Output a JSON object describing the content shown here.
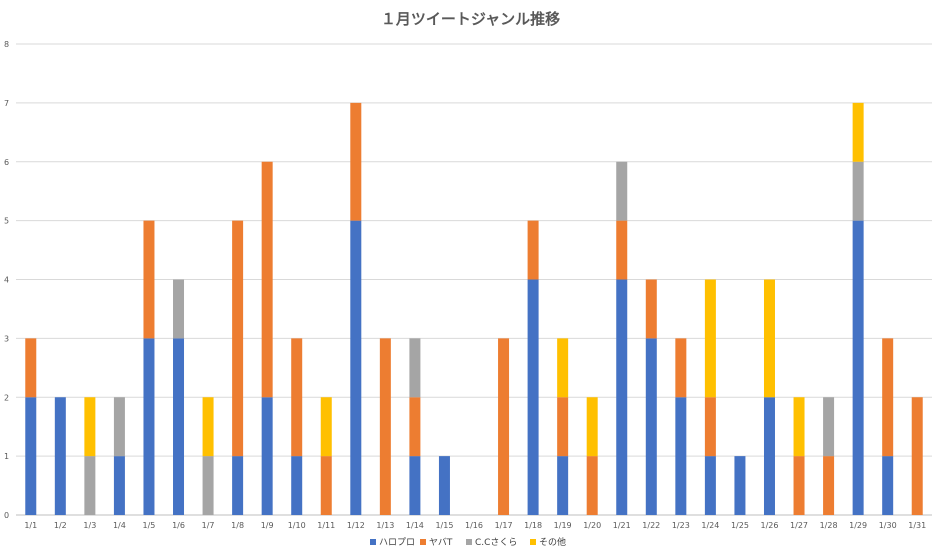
{
  "chart_data": {
    "type": "bar",
    "stacked": true,
    "title": "１月ツイートジャンル推移",
    "xlabel": "",
    "ylabel": "",
    "ylim": [
      0,
      8
    ],
    "yticks": [
      "0",
      "1",
      "2",
      "3",
      "4",
      "5",
      "6",
      "7",
      "8"
    ],
    "grid": true,
    "legend_position": "bottom",
    "categories": [
      "1/1",
      "1/2",
      "1/3",
      "1/4",
      "1/5",
      "1/6",
      "1/7",
      "1/8",
      "1/9",
      "1/10",
      "1/11",
      "1/12",
      "1/13",
      "1/14",
      "1/15",
      "1/16",
      "1/17",
      "1/18",
      "1/19",
      "1/20",
      "1/21",
      "1/22",
      "1/23",
      "1/24",
      "1/25",
      "1/26",
      "1/27",
      "1/28",
      "1/29",
      "1/30",
      "1/31"
    ],
    "series": [
      {
        "name": "ハロプロ",
        "color": "#4472C4",
        "values": [
          2,
          2,
          0,
          1,
          3,
          3,
          0,
          1,
          2,
          1,
          0,
          5,
          0,
          1,
          1,
          0,
          0,
          4,
          1,
          0,
          4,
          3,
          2,
          1,
          1,
          2,
          0,
          0,
          5,
          1,
          0
        ]
      },
      {
        "name": "ヤバT",
        "color": "#ED7D31",
        "values": [
          1,
          0,
          0,
          0,
          2,
          0,
          0,
          4,
          4,
          2,
          1,
          2,
          3,
          1,
          0,
          0,
          3,
          1,
          1,
          1,
          1,
          1,
          1,
          1,
          0,
          0,
          1,
          1,
          0,
          2,
          2
        ]
      },
      {
        "name": "C.Cさくら",
        "color": "#A5A5A5",
        "values": [
          0,
          0,
          1,
          1,
          0,
          1,
          1,
          0,
          0,
          0,
          0,
          0,
          0,
          1,
          0,
          0,
          0,
          0,
          0,
          0,
          1,
          0,
          0,
          0,
          0,
          0,
          0,
          1,
          1,
          0,
          0
        ]
      },
      {
        "name": "その他",
        "color": "#FFC000",
        "values": [
          0,
          0,
          1,
          0,
          0,
          0,
          1,
          0,
          0,
          0,
          1,
          0,
          0,
          0,
          0,
          0,
          0,
          0,
          1,
          1,
          0,
          0,
          0,
          2,
          0,
          2,
          1,
          0,
          1,
          0,
          0
        ]
      }
    ]
  }
}
